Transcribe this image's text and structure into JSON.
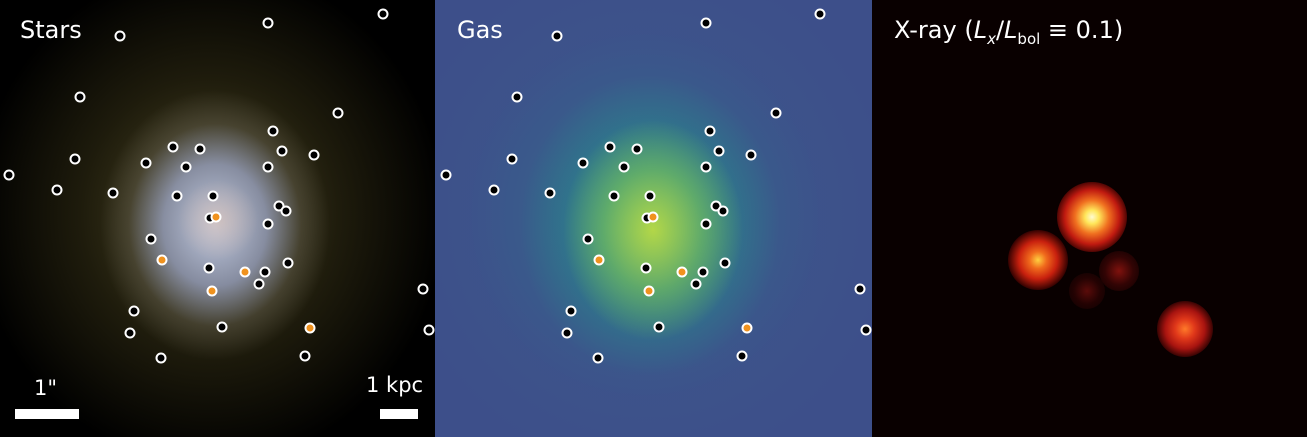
{
  "panels": {
    "stars": {
      "title": "Stars",
      "scale_angular": "1\"",
      "scale_physical": "1 kpc"
    },
    "gas": {
      "title": "Gas"
    },
    "xray": {
      "title_prefix": "X-ray (",
      "title_L1": "L",
      "title_sub1": "x",
      "title_slash": "/",
      "title_L2": "L",
      "title_sub2": "bol",
      "title_suffix": " ≡ 0.1)"
    }
  },
  "colors": {
    "marker_normal_fill": "#000000",
    "marker_highlight_fill": "#f0921e",
    "marker_edge": "#ffffff",
    "xray_core": "#fff6a0",
    "xray_glow": "#e8321a"
  }
}
